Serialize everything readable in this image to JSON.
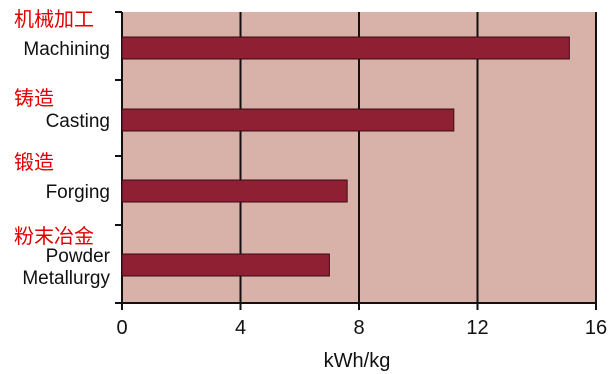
{
  "chart_data": {
    "type": "bar",
    "orientation": "horizontal",
    "categories": [
      {
        "label_lines": [
          "Machining"
        ],
        "label_cn": "机械加工",
        "value": 15.1
      },
      {
        "label_lines": [
          "Casting"
        ],
        "label_cn": "铸造",
        "value": 11.2
      },
      {
        "label_lines": [
          "Forging"
        ],
        "label_cn": "锻造",
        "value": 7.6
      },
      {
        "label_lines": [
          "Powder",
          "Metallurgy"
        ],
        "label_cn": "粉末冶金",
        "value": 7.0
      }
    ],
    "xlabel": "kWh/kg",
    "xticks": [
      "0",
      "4",
      "8",
      "12",
      "16"
    ],
    "xlim": [
      0,
      16
    ],
    "grid": "vertical",
    "colors": {
      "plot_background": "#d8b1a8",
      "bar_fill": "#8f1f33",
      "bar_stroke": "#3a0a14",
      "grid": "#111111",
      "chinese_label": "#e00000"
    }
  }
}
